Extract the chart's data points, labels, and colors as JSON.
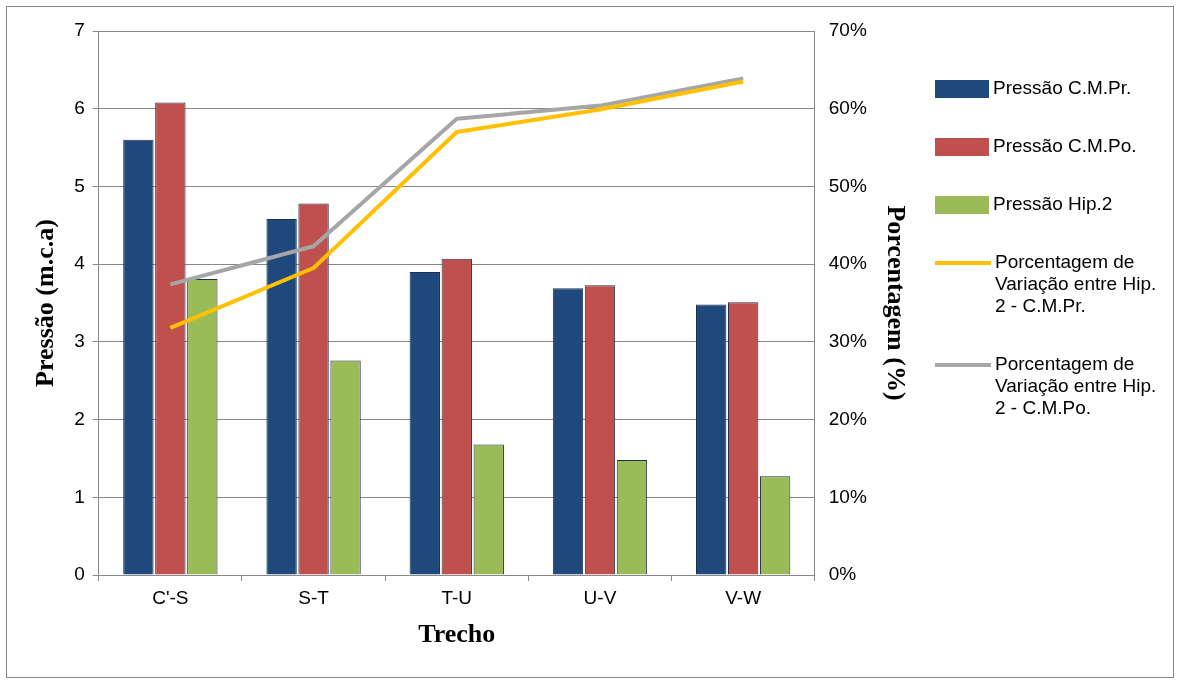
{
  "chart_data": {
    "type": "bar",
    "xlabel": "Trecho",
    "ylabel": "Pressão (m.c.a)",
    "y2label": "Porcentagem (%)",
    "categories": [
      "C'-S",
      "S-T",
      "T-U",
      "U-V",
      "V-W"
    ],
    "series": [
      {
        "name": "Pressão C.M.Pr.",
        "color": "#1f497d",
        "values": [
          5.6,
          4.58,
          3.9,
          3.69,
          3.48
        ]
      },
      {
        "name": "Pressão C.M.Po.",
        "color": "#c0504d",
        "values": [
          6.08,
          4.78,
          4.07,
          3.73,
          3.51
        ]
      },
      {
        "name": "Pressão Hip.2",
        "color": "#9bbb59",
        "values": [
          3.81,
          2.76,
          1.68,
          1.48,
          1.27
        ]
      },
      {
        "name": "Porcentagem de Variação entre Hip. 2 - C.M.Pr.",
        "type": "line",
        "axis": "y2",
        "color": "#ffc000",
        "values": [
          31.8,
          39.5,
          57.0,
          59.9,
          63.5
        ]
      },
      {
        "name": "Porcentagem de Variação entre Hip. 2 - C.M.Po.",
        "type": "line",
        "axis": "y2",
        "color": "#a6a6a6",
        "values": [
          37.4,
          42.3,
          58.7,
          60.4,
          63.9
        ]
      }
    ],
    "ylim": [
      0,
      7
    ],
    "yticks": [
      0,
      1,
      2,
      3,
      4,
      5,
      6,
      7
    ],
    "y2lim": [
      0,
      70
    ],
    "y2ticks": [
      {
        "value": 0,
        "label": "0%"
      },
      {
        "value": 10,
        "label": "10%"
      },
      {
        "value": 20,
        "label": "20%"
      },
      {
        "value": 30,
        "label": "30%"
      },
      {
        "value": 40,
        "label": "40%"
      },
      {
        "value": 50,
        "label": "50%"
      },
      {
        "value": 60,
        "label": "60%"
      },
      {
        "value": 70,
        "label": "70%"
      }
    ],
    "grid": "y",
    "legend": "right",
    "marker": "none"
  }
}
